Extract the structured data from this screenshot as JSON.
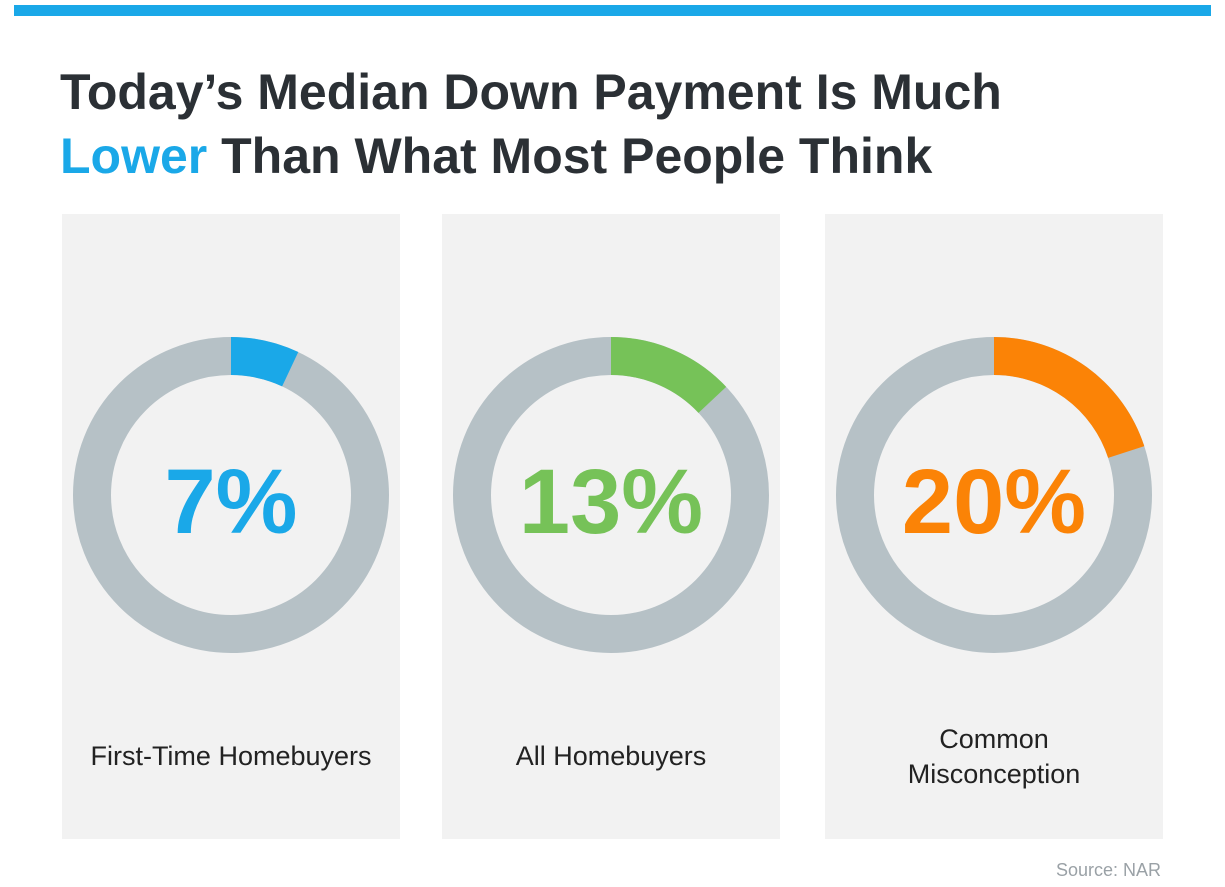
{
  "title": {
    "line1": "Today’s Median Down Payment Is Much",
    "accent": "Lower",
    "line2_rest": " Than What Most People Think"
  },
  "chart_data": {
    "type": "pie",
    "charts": [
      {
        "label": "First-Time Homebuyers",
        "label_lines": [
          "First-Time Homebuyers"
        ],
        "value": 7,
        "display": "7%",
        "color": "#1aa8e8"
      },
      {
        "label": "All Homebuyers",
        "label_lines": [
          "All Homebuyers"
        ],
        "value": 13,
        "display": "13%",
        "color": "#76c258"
      },
      {
        "label": "Common Misconception",
        "label_lines": [
          "Common",
          "Misconception"
        ],
        "value": 20,
        "display": "20%",
        "color": "#fb8306"
      }
    ],
    "track_color": "#b6c1c6"
  },
  "source": "Source: NAR"
}
